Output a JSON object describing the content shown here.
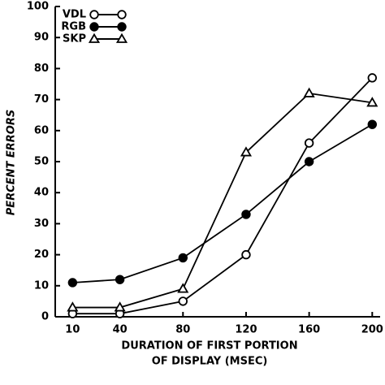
{
  "chart_data": {
    "type": "line",
    "ylabel": "PERCENT ERRORS",
    "xlabel": [
      "DURATION OF FIRST PORTION",
      "OF DISPLAY (MSEC)"
    ],
    "x": [
      10,
      40,
      80,
      120,
      160,
      200
    ],
    "xlim": [
      -1,
      205
    ],
    "xticks": [
      10,
      40,
      80,
      120,
      160,
      200
    ],
    "ylim": [
      0,
      100
    ],
    "yticks": [
      0,
      10,
      20,
      30,
      40,
      50,
      60,
      70,
      80,
      90,
      100
    ],
    "series": [
      {
        "name": "VDL",
        "color": "#000000",
        "marker": "circle-open",
        "values": [
          1,
          1,
          5,
          20,
          56,
          77
        ]
      },
      {
        "name": "RGB",
        "color": "#000000",
        "marker": "circle-filled",
        "values": [
          11,
          12,
          19,
          33,
          50,
          62
        ]
      },
      {
        "name": "SKP",
        "color": "#000000",
        "marker": "triangle-open",
        "values": [
          3,
          3,
          9,
          53,
          72,
          69
        ]
      }
    ],
    "legend": "upper left"
  }
}
